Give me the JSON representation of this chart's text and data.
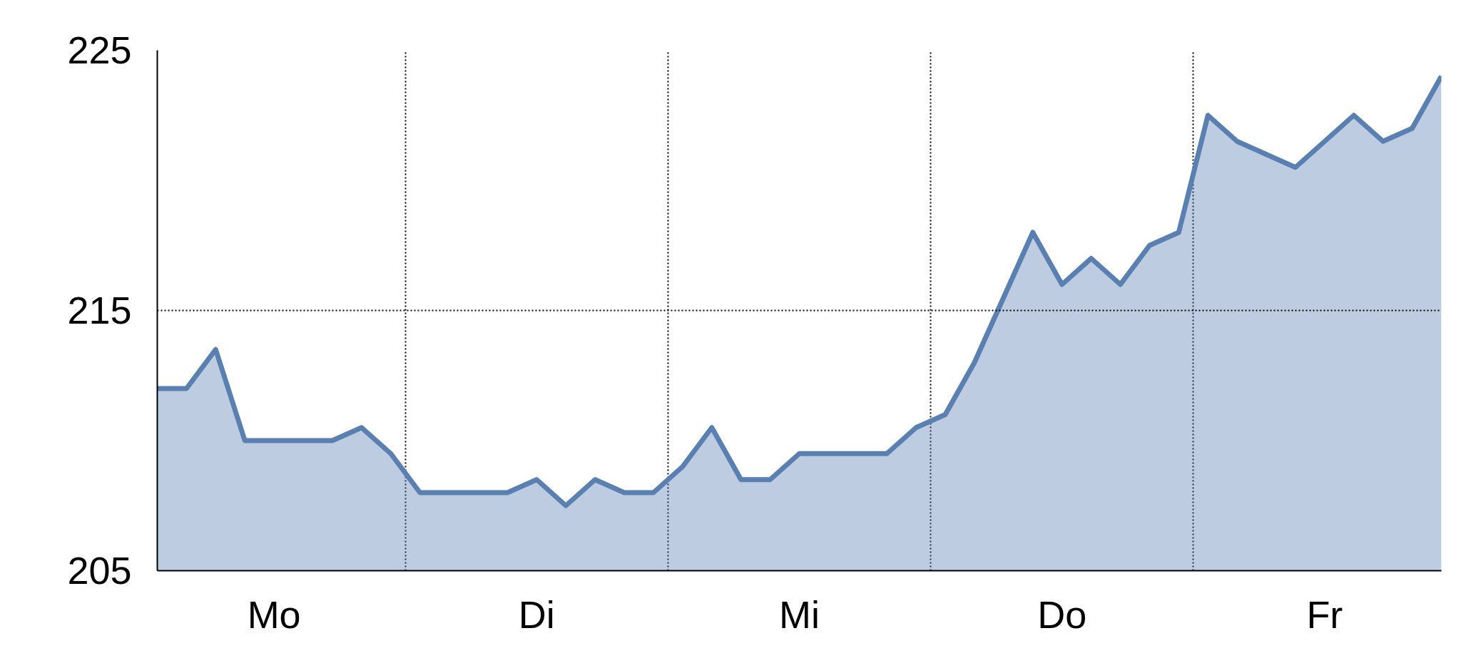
{
  "chart_data": {
    "type": "area",
    "categories": [
      null,
      null,
      null,
      null,
      "Mo",
      null,
      null,
      null,
      null,
      null,
      null,
      null,
      null,
      "Di",
      null,
      null,
      null,
      null,
      null,
      null,
      null,
      null,
      "Mi",
      null,
      null,
      null,
      null,
      null,
      null,
      null,
      null,
      "Do",
      null,
      null,
      null,
      null,
      null,
      null,
      null,
      null,
      "Fr",
      null,
      null,
      null,
      null
    ],
    "series": [
      {
        "color": "#5a80b2",
        "values": [
          212,
          212,
          213.5,
          210,
          210,
          210,
          210,
          210.5,
          209.5,
          208,
          208,
          208,
          208,
          208.5,
          207.5,
          208.5,
          208,
          208,
          209,
          210.5,
          208.5,
          208.5,
          209.5,
          209.5,
          209.5,
          209.5,
          210.5,
          211,
          213,
          215.5,
          218,
          216,
          217,
          216,
          217.5,
          218,
          222.5,
          221.5,
          221,
          220.5,
          221.5,
          222.5,
          221.5,
          222,
          224
        ]
      }
    ],
    "ylim": [
      205,
      225
    ],
    "yticks": [
      205,
      215,
      225
    ],
    "ref_lines": [
      {
        "axis": "y",
        "value": 215,
        "line_style": "dotted"
      }
    ],
    "grid": "x"
  }
}
